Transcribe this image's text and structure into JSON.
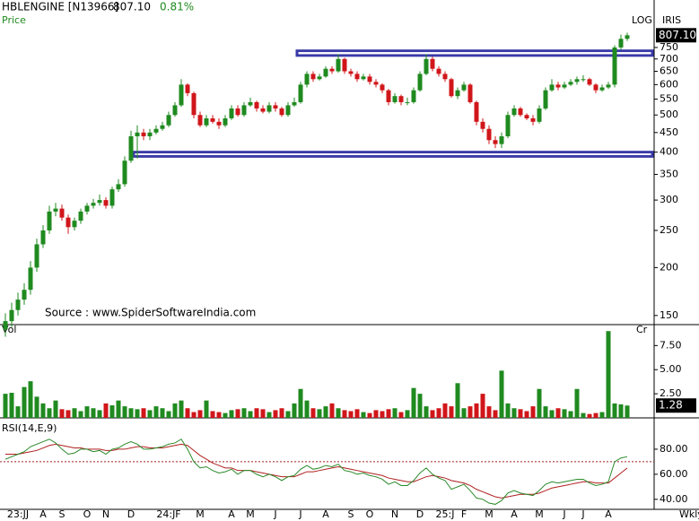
{
  "chart_data": {
    "type": "candlestick",
    "title": "HBLENGINE [N13966]",
    "last": {
      "value": 807.1,
      "label": "807.10"
    },
    "change": {
      "value": 0.81,
      "label": "0.81%"
    },
    "y_label": "Price",
    "scale_label": "LOG",
    "brand": "IRIS",
    "source": "Source : www.SpiderSoftwareIndia.com",
    "period_label": "Wkly",
    "log_scale": true,
    "up_color": "#1f8a1f",
    "down_color": "#d0161a",
    "zone_color": "#3a3aa8",
    "categories": [
      null,
      null,
      "23:JJ",
      null,
      null,
      null,
      "A",
      null,
      null,
      "S",
      null,
      null,
      null,
      "O",
      null,
      null,
      "N",
      null,
      null,
      null,
      "D",
      null,
      null,
      null,
      null,
      null,
      "24:JF",
      null,
      null,
      null,
      null,
      "M",
      null,
      null,
      null,
      null,
      "A",
      null,
      null,
      "M",
      null,
      null,
      null,
      "J",
      null,
      null,
      null,
      "J",
      null,
      null,
      null,
      "A",
      null,
      null,
      null,
      "S",
      null,
      null,
      "O",
      null,
      null,
      null,
      "N",
      null,
      null,
      null,
      "D",
      null,
      null,
      null,
      "25:J",
      null,
      null,
      "F",
      null,
      null,
      null,
      "M",
      null,
      null,
      null,
      "A",
      null,
      null,
      null,
      "M",
      null,
      null,
      null,
      "J",
      null,
      null,
      "J",
      null,
      null,
      null,
      "A",
      null,
      null,
      null
    ],
    "open": [
      138,
      145,
      155,
      165,
      175,
      200,
      230,
      250,
      280,
      285,
      270,
      255,
      265,
      280,
      290,
      295,
      300,
      290,
      320,
      330,
      380,
      440,
      450,
      440,
      450,
      460,
      470,
      500,
      530,
      600,
      570,
      500,
      470,
      490,
      480,
      470,
      490,
      520,
      500,
      530,
      540,
      520,
      510,
      530,
      520,
      500,
      530,
      540,
      600,
      640,
      620,
      630,
      660,
      650,
      700,
      650,
      640,
      620,
      630,
      610,
      600,
      580,
      540,
      560,
      540,
      540,
      580,
      640,
      700,
      660,
      640,
      620,
      560,
      580,
      600,
      540,
      480,
      460,
      430,
      420,
      440,
      500,
      520,
      500,
      490,
      480,
      520,
      580,
      600,
      590,
      600,
      610,
      620,
      620,
      600,
      580,
      590,
      600,
      750,
      790
    ],
    "high": [
      152,
      162,
      172,
      182,
      208,
      238,
      258,
      290,
      295,
      292,
      275,
      270,
      285,
      295,
      302,
      310,
      305,
      325,
      340,
      390,
      455,
      470,
      460,
      460,
      470,
      480,
      510,
      540,
      620,
      605,
      575,
      510,
      500,
      500,
      490,
      500,
      530,
      530,
      540,
      555,
      545,
      530,
      540,
      540,
      525,
      540,
      555,
      610,
      650,
      650,
      640,
      670,
      670,
      720,
      705,
      660,
      650,
      640,
      640,
      620,
      605,
      585,
      570,
      565,
      555,
      590,
      650,
      720,
      710,
      670,
      650,
      625,
      590,
      610,
      605,
      545,
      490,
      470,
      440,
      450,
      510,
      530,
      525,
      505,
      500,
      530,
      590,
      620,
      610,
      610,
      620,
      630,
      635,
      625,
      605,
      600,
      610,
      760,
      810,
      820
    ],
    "low": [
      132,
      140,
      150,
      160,
      170,
      195,
      225,
      245,
      272,
      265,
      245,
      250,
      260,
      275,
      285,
      290,
      285,
      285,
      315,
      325,
      375,
      385,
      430,
      430,
      445,
      455,
      465,
      495,
      525,
      560,
      490,
      465,
      465,
      475,
      460,
      465,
      485,
      495,
      495,
      525,
      510,
      505,
      505,
      510,
      495,
      495,
      525,
      535,
      590,
      610,
      615,
      625,
      640,
      645,
      640,
      630,
      610,
      615,
      600,
      590,
      570,
      530,
      535,
      530,
      530,
      535,
      575,
      635,
      650,
      630,
      610,
      555,
      550,
      575,
      535,
      470,
      450,
      420,
      410,
      410,
      435,
      495,
      495,
      485,
      470,
      475,
      515,
      575,
      580,
      585,
      595,
      600,
      610,
      595,
      570,
      575,
      585,
      590,
      740,
      780
    ],
    "close": [
      145,
      155,
      165,
      175,
      200,
      230,
      250,
      280,
      285,
      270,
      255,
      265,
      280,
      290,
      295,
      300,
      290,
      320,
      330,
      380,
      440,
      450,
      440,
      450,
      460,
      470,
      500,
      530,
      600,
      570,
      500,
      470,
      490,
      480,
      470,
      490,
      520,
      500,
      530,
      540,
      520,
      510,
      530,
      520,
      500,
      530,
      540,
      600,
      640,
      620,
      630,
      660,
      650,
      700,
      650,
      640,
      620,
      630,
      610,
      600,
      580,
      540,
      560,
      540,
      540,
      580,
      640,
      700,
      660,
      640,
      620,
      560,
      580,
      600,
      540,
      480,
      460,
      430,
      420,
      440,
      500,
      520,
      500,
      490,
      480,
      520,
      580,
      600,
      590,
      600,
      610,
      620,
      620,
      600,
      580,
      590,
      600,
      750,
      790,
      807.1
    ],
    "ylim": [
      142,
      920
    ],
    "yticks": [
      150,
      200,
      250,
      300,
      350,
      400,
      450,
      500,
      550,
      600,
      650,
      700,
      750
    ],
    "zones": [
      {
        "low": 715,
        "high": 735,
        "start_index": 47
      },
      {
        "low": 390,
        "high": 400,
        "start_index": 21
      }
    ],
    "volume": {
      "label": "Vol",
      "unit": "Cr",
      "values": [
        2.5,
        2.6,
        1.2,
        3.2,
        3.8,
        2.2,
        1.5,
        1.0,
        1.8,
        0.9,
        0.8,
        1.0,
        0.7,
        1.2,
        1.0,
        0.8,
        1.5,
        1.3,
        1.8,
        1.2,
        1.0,
        0.9,
        1.0,
        0.8,
        1.2,
        1.0,
        0.7,
        1.5,
        1.8,
        1.0,
        0.6,
        0.8,
        1.8,
        0.7,
        0.6,
        0.5,
        0.8,
        0.9,
        1.0,
        0.7,
        1.0,
        0.9,
        0.6,
        0.8,
        1.0,
        0.7,
        1.5,
        3.0,
        1.8,
        1.0,
        0.9,
        1.2,
        1.5,
        1.0,
        0.8,
        0.7,
        0.9,
        0.6,
        0.5,
        0.8,
        0.7,
        0.9,
        1.0,
        0.6,
        0.8,
        3.1,
        2.5,
        1.2,
        0.8,
        1.0,
        1.5,
        1.2,
        3.6,
        1.0,
        1.2,
        1.5,
        2.5,
        1.2,
        0.8,
        4.9,
        1.5,
        1.0,
        0.9,
        0.7,
        1.2,
        3.0,
        1.2,
        0.8,
        1.0,
        0.9,
        0.7,
        3.0,
        0.5,
        0.4,
        0.5,
        0.6,
        9.0,
        1.5,
        1.4,
        1.28
      ],
      "ylim": [
        0,
        9.3
      ],
      "yticks": [
        {
          "value": 2.5,
          "label": "2.50"
        },
        {
          "value": 5,
          "label": "5.00"
        },
        {
          "value": 7.5,
          "label": "7.50"
        }
      ],
      "last": {
        "value": 1.28,
        "label": "1.28"
      }
    },
    "rsi": {
      "label": "RSI(14,E,9)",
      "color": "#2a8a2a",
      "signal_color": "#b02020",
      "values": [
        72,
        74,
        76,
        78,
        82,
        84,
        86,
        88,
        85,
        80,
        76,
        77,
        80,
        80,
        78,
        79,
        76,
        80,
        81,
        84,
        86,
        84,
        80,
        80,
        81,
        82,
        84,
        85,
        88,
        80,
        70,
        65,
        66,
        63,
        61,
        62,
        64,
        60,
        63,
        63,
        60,
        58,
        60,
        58,
        55,
        58,
        59,
        64,
        67,
        64,
        65,
        67,
        66,
        68,
        63,
        62,
        60,
        61,
        59,
        58,
        56,
        52,
        54,
        51,
        51,
        55,
        61,
        65,
        60,
        57,
        55,
        48,
        50,
        52,
        47,
        41,
        40,
        37,
        36,
        39,
        45,
        47,
        45,
        44,
        43,
        47,
        52,
        54,
        53,
        54,
        55,
        56,
        56,
        53,
        51,
        52,
        54,
        70,
        73,
        74
      ],
      "signal": [
        76,
        76,
        76,
        77,
        78,
        79,
        81,
        83,
        84,
        83,
        82,
        81,
        81,
        80,
        80,
        80,
        79,
        79,
        80,
        80,
        81,
        82,
        82,
        81,
        81,
        81,
        82,
        83,
        84,
        83,
        79,
        75,
        72,
        69,
        67,
        65,
        65,
        63,
        63,
        63,
        62,
        61,
        60,
        59,
        58,
        58,
        58,
        60,
        62,
        62,
        63,
        64,
        65,
        66,
        65,
        64,
        63,
        62,
        61,
        60,
        59,
        57,
        56,
        55,
        54,
        54,
        56,
        58,
        59,
        58,
        57,
        55,
        54,
        53,
        51,
        48,
        46,
        44,
        42,
        41,
        42,
        43,
        44,
        44,
        44,
        45,
        47,
        49,
        50,
        51,
        52,
        53,
        54,
        54,
        53,
        53,
        53,
        57,
        61,
        65
      ],
      "ylim": [
        32,
        105
      ],
      "yticks": [
        {
          "value": 40,
          "label": "40.00"
        },
        {
          "value": 60,
          "label": "60.00"
        },
        {
          "value": 80,
          "label": "80.00"
        }
      ],
      "reference_line": 70
    }
  }
}
